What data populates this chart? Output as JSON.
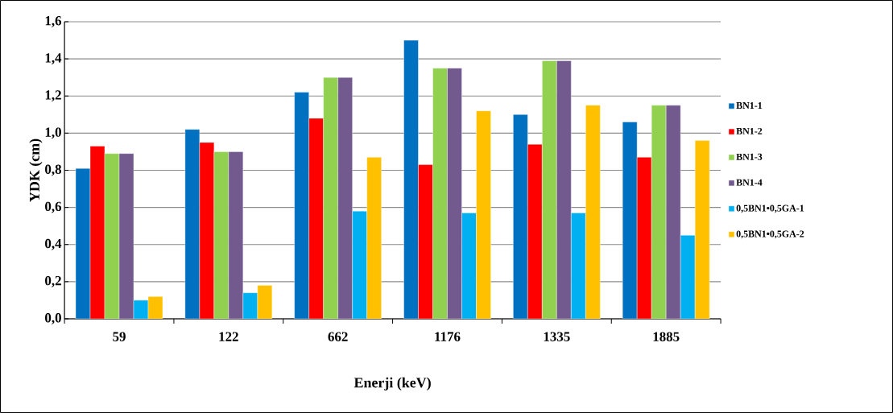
{
  "chart_data": {
    "type": "bar",
    "xlabel": "Enerji (keV)",
    "ylabel": "YDK (cm)",
    "categories": [
      "59",
      "122",
      "662",
      "1176",
      "1335",
      "1885"
    ],
    "series": [
      {
        "name": "BN1-1",
        "color": "#0070c0",
        "values": [
          0.81,
          1.02,
          1.22,
          1.5,
          1.1,
          1.06
        ]
      },
      {
        "name": "BN1-2",
        "color": "#ff0000",
        "values": [
          0.93,
          0.95,
          1.08,
          0.83,
          0.94,
          0.87
        ]
      },
      {
        "name": "BN1-3",
        "color": "#92d050",
        "values": [
          0.89,
          0.9,
          1.3,
          1.35,
          1.39,
          1.15
        ]
      },
      {
        "name": "BN1-4",
        "color": "#725a8e",
        "values": [
          0.89,
          0.9,
          1.3,
          1.35,
          1.39,
          1.15
        ]
      },
      {
        "name": "0,5BN1•0,5GA-1",
        "color": "#00b0f0",
        "values": [
          0.1,
          0.14,
          0.58,
          0.57,
          0.57,
          0.45
        ]
      },
      {
        "name": "0,5BN1•0,5GA-2",
        "color": "#ffc000",
        "values": [
          0.12,
          0.18,
          0.87,
          1.12,
          1.15,
          0.96
        ]
      }
    ],
    "ylim": [
      0,
      1.6
    ],
    "yticks": [
      {
        "value": 0,
        "label": "0,0"
      },
      {
        "value": 0.2,
        "label": "0,2"
      },
      {
        "value": 0.4,
        "label": "0,4"
      },
      {
        "value": 0.6,
        "label": "0,6"
      },
      {
        "value": 0.8,
        "label": "0,8"
      },
      {
        "value": 1.0,
        "label": "1,0"
      },
      {
        "value": 1.2,
        "label": "1,2"
      },
      {
        "value": 1.4,
        "label": "1,4"
      },
      {
        "value": 1.6,
        "label": "1,6"
      }
    ],
    "grid": "y",
    "legend": "right"
  }
}
